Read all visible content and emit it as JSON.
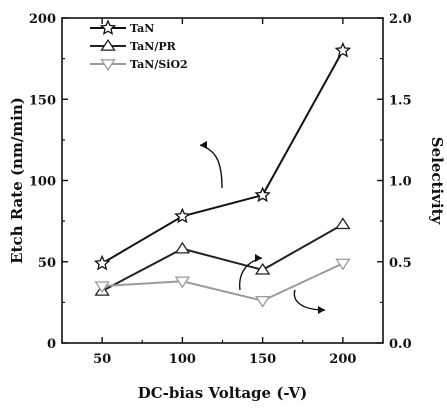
{
  "chart_data": {
    "type": "line",
    "title": "",
    "xlabel": "DC-bias Voltage (-V)",
    "ylabel_left": "Etch Rate (nm/min)",
    "ylabel_right": "Selectivity",
    "x": [
      50,
      100,
      150,
      200
    ],
    "xlim": [
      25,
      225
    ],
    "xticks": [
      50,
      100,
      150,
      200
    ],
    "ylim_left": [
      0,
      200
    ],
    "yticks_left": [
      0,
      50,
      100,
      150,
      200
    ],
    "ylim_right": [
      0.0,
      2.0
    ],
    "yticks_right": [
      "0.0",
      "0.5",
      "1.0",
      "1.5",
      "2.0"
    ],
    "grid": false,
    "legend_position": "top-left",
    "series": [
      {
        "name": "TaN",
        "axis": "left",
        "marker": "star",
        "color": "#111111",
        "values": [
          49,
          78,
          91,
          180
        ]
      },
      {
        "name": "TaN/PR",
        "axis": "right",
        "marker": "triangle",
        "color": "#222222",
        "values": [
          0.32,
          0.58,
          0.45,
          0.73
        ]
      },
      {
        "name": "TaN/SiO2",
        "axis": "right",
        "marker": "triangle-down",
        "color": "#9a9a9a",
        "values": [
          0.35,
          0.38,
          0.26,
          0.49
        ]
      }
    ]
  }
}
